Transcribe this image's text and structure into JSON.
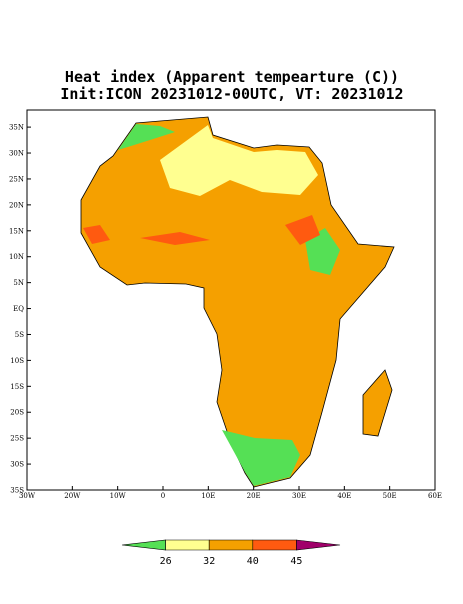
{
  "map": {
    "title": "Heat index (Apparent tempearture (C))",
    "subtitle": "Init:ICON 20231012-00UTC, VT: 20231012",
    "xlim": [
      -30,
      60
    ],
    "ylim": [
      -35,
      38.3
    ],
    "xticks": [
      {
        "value": -30,
        "label": "30W"
      },
      {
        "value": -20,
        "label": "20W"
      },
      {
        "value": -10,
        "label": "10W"
      },
      0,
      {
        "value": 10,
        "label": "10E"
      },
      {
        "value": 20,
        "label": "20E"
      },
      {
        "value": 30,
        "label": "30E"
      },
      {
        "value": 40,
        "label": "40E"
      },
      {
        "value": 50,
        "label": "50E"
      },
      {
        "value": 60,
        "label": "60E"
      }
    ],
    "yticks": [
      {
        "value": 35,
        "label": "35N"
      },
      {
        "value": 30,
        "label": "30N"
      },
      {
        "value": 25,
        "label": "25N"
      },
      {
        "value": 20,
        "label": "20N"
      },
      {
        "value": 15,
        "label": "15N"
      },
      {
        "value": 10,
        "label": "10N"
      },
      {
        "value": 5,
        "label": "5N"
      },
      {
        "value": 0,
        "label": "EQ"
      },
      {
        "value": -5,
        "label": "5S"
      },
      {
        "value": -10,
        "label": "10S"
      },
      {
        "value": -15,
        "label": "15S"
      },
      {
        "value": -20,
        "label": "20S"
      },
      {
        "value": -25,
        "label": "25S"
      },
      {
        "value": -30,
        "label": "30S"
      },
      {
        "value": -35,
        "label": "35S"
      }
    ],
    "colorbar": {
      "ticks": [
        26,
        32,
        40,
        45
      ],
      "colors": [
        "#55e055",
        "#ffff90",
        "#f5a000",
        "#ff5a10",
        "#a0006a"
      ]
    }
  }
}
